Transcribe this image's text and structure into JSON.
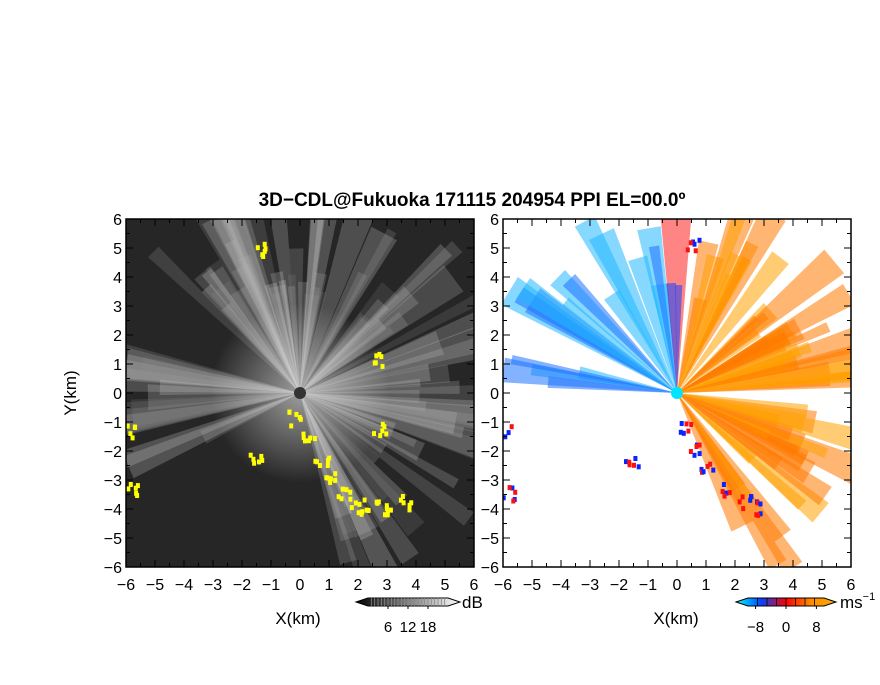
{
  "chart_data": {
    "type": "heatmap",
    "title": "3D−CDL@Fukuoka 171115 204954 PPI EL=00.0º",
    "panels": [
      {
        "name": "reflectivity",
        "xlabel": "X(km)",
        "ylabel": "Y(km)",
        "xlim": [
          -6,
          6
        ],
        "ylim": [
          -6,
          6
        ],
        "x_ticks": [
          "−6",
          "−5",
          "−4",
          "−3",
          "−2",
          "−1",
          "0",
          "1",
          "2",
          "3",
          "4",
          "5",
          "6"
        ],
        "y_ticks": [
          "6",
          "5",
          "4",
          "3",
          "2",
          "1",
          "0",
          "−1",
          "−2",
          "−3",
          "−4",
          "−5",
          "−6"
        ],
        "colorbar": {
          "unit": "dB",
          "ticks": [
            "6",
            "12",
            "18"
          ],
          "range": [
            0,
            24
          ],
          "colors": [
            "#000000",
            "#ffffff"
          ]
        },
        "background_color": "#262626",
        "highlight_color": "#ffff00"
      },
      {
        "name": "doppler-velocity",
        "xlabel": "X(km)",
        "ylabel": "",
        "xlim": [
          -6,
          6
        ],
        "ylim": [
          -6,
          6
        ],
        "x_ticks": [
          "−6",
          "−5",
          "−4",
          "−3",
          "−2",
          "−1",
          "0",
          "1",
          "2",
          "3",
          "4",
          "5",
          "6"
        ],
        "y_ticks": [
          "6",
          "5",
          "4",
          "3",
          "2",
          "1",
          "0",
          "−1",
          "−2",
          "−3",
          "−4",
          "−5",
          "−6"
        ],
        "colorbar": {
          "unit": "ms",
          "unit_exponent": "−1",
          "ticks": [
            "−8",
            "0",
            "8"
          ],
          "range": [
            -10,
            10
          ],
          "colors": [
            "#00ffff",
            "#0044ff",
            "#ff0000",
            "#ff8c00",
            "#ffaa00"
          ]
        },
        "background_color": "#ffffff"
      }
    ]
  }
}
